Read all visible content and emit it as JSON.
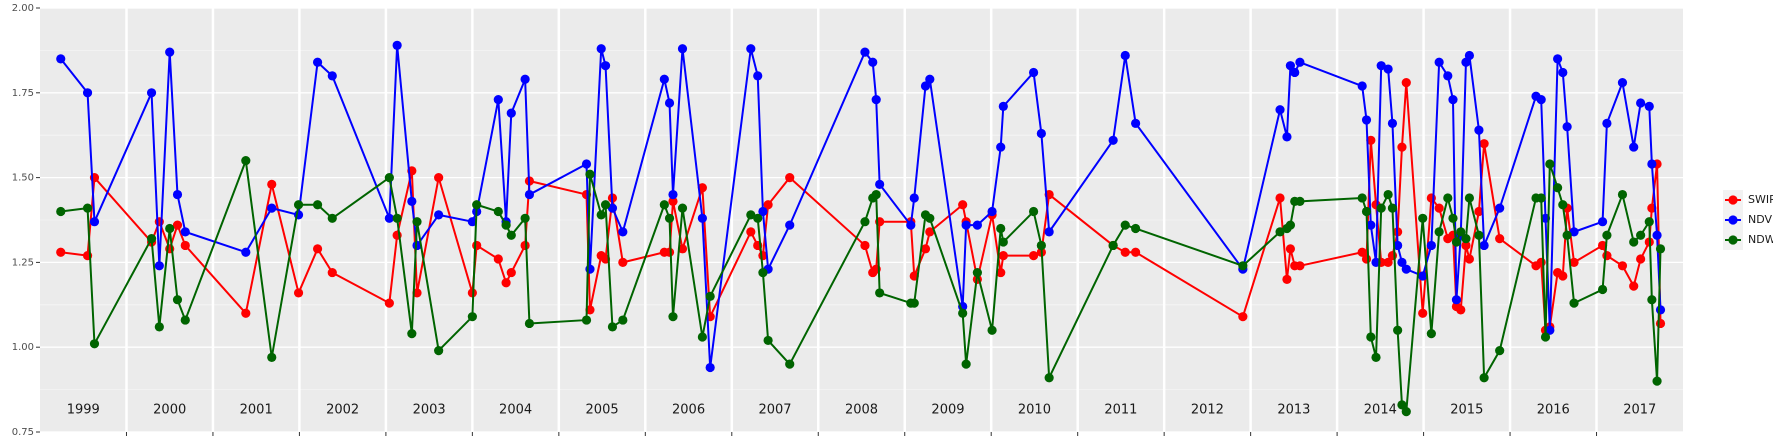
{
  "chart_data": {
    "type": "line",
    "x": [
      1999.24,
      1999.55,
      1999.63,
      2000.29,
      2000.38,
      2000.5,
      2000.59,
      2000.68,
      2001.38,
      2001.68,
      2001.99,
      2002.21,
      2002.38,
      2003.04,
      2003.13,
      2003.3,
      2003.36,
      2003.61,
      2004,
      2004.05,
      2004.3,
      2004.39,
      2004.45,
      2004.61,
      2004.66,
      2005.32,
      2005.36,
      2005.49,
      2005.54,
      2005.62,
      2005.74,
      2006.22,
      2006.28,
      2006.32,
      2006.43,
      2006.66,
      2006.75,
      2007.22,
      2007.3,
      2007.36,
      2007.42,
      2007.67,
      2008.54,
      2008.63,
      2008.67,
      2008.71,
      2009.07,
      2009.11,
      2009.24,
      2009.29,
      2009.67,
      2009.71,
      2009.84,
      2010.01,
      2010.11,
      2010.14,
      2010.49,
      2010.58,
      2010.67,
      2011.41,
      2011.55,
      2011.67,
      2012.91,
      2013.34,
      2013.42,
      2013.46,
      2013.51,
      2013.57,
      2014.29,
      2014.34,
      2014.39,
      2014.45,
      2014.51,
      2014.59,
      2014.64,
      2014.7,
      2014.75,
      2014.8,
      2014.99,
      2015.09,
      2015.18,
      2015.28,
      2015.34,
      2015.38,
      2015.43,
      2015.49,
      2015.53,
      2015.64,
      2015.7,
      2015.88,
      2016.3,
      2016.36,
      2016.41,
      2016.46,
      2016.55,
      2016.61,
      2016.66,
      2016.74,
      2017.07,
      2017.12,
      2017.3,
      2017.43,
      2017.51,
      2017.61,
      2017.64,
      2017.7,
      2017.74
    ],
    "series": [
      {
        "name": "SWIR",
        "color": "#ff0000",
        "values": [
          1.28,
          1.27,
          1.5,
          1.31,
          1.37,
          1.29,
          1.36,
          1.3,
          1.1,
          1.48,
          1.16,
          1.29,
          1.22,
          1.13,
          1.33,
          1.52,
          1.16,
          1.5,
          1.16,
          1.3,
          1.26,
          1.19,
          1.22,
          1.3,
          1.49,
          1.45,
          1.11,
          1.27,
          1.26,
          1.44,
          1.25,
          1.28,
          1.28,
          1.43,
          1.29,
          1.47,
          1.09,
          1.34,
          1.3,
          1.27,
          1.42,
          1.5,
          1.3,
          1.22,
          1.23,
          1.37,
          1.37,
          1.21,
          1.29,
          1.34,
          1.42,
          1.37,
          1.2,
          1.39,
          1.22,
          1.27,
          1.27,
          1.28,
          1.45,
          1.3,
          1.28,
          1.28,
          1.09,
          1.44,
          1.2,
          1.29,
          1.24,
          1.24,
          1.28,
          1.26,
          1.61,
          1.42,
          1.25,
          1.25,
          1.27,
          1.34,
          1.59,
          1.78,
          1.1,
          1.44,
          1.41,
          1.32,
          1.33,
          1.12,
          1.11,
          1.3,
          1.26,
          1.4,
          1.6,
          1.32,
          1.24,
          1.25,
          1.05,
          1.06,
          1.22,
          1.21,
          1.41,
          1.25,
          1.3,
          1.27,
          1.24,
          1.18,
          1.26,
          1.31,
          1.41,
          1.54,
          1.07
        ]
      },
      {
        "name": "NDVI",
        "color": "#0000ff",
        "values": [
          1.85,
          1.75,
          1.37,
          1.75,
          1.24,
          1.87,
          1.45,
          1.34,
          1.28,
          1.41,
          1.39,
          1.84,
          1.8,
          1.38,
          1.89,
          1.43,
          1.3,
          1.39,
          1.37,
          1.4,
          1.73,
          1.37,
          1.69,
          1.79,
          1.45,
          1.54,
          1.23,
          1.88,
          1.83,
          1.41,
          1.34,
          1.79,
          1.72,
          1.45,
          1.88,
          1.38,
          0.94,
          1.88,
          1.8,
          1.4,
          1.23,
          1.36,
          1.87,
          1.84,
          1.73,
          1.48,
          1.36,
          1.44,
          1.77,
          1.79,
          1.12,
          1.36,
          1.36,
          1.4,
          1.59,
          1.71,
          1.81,
          1.63,
          1.34,
          1.61,
          1.86,
          1.66,
          1.23,
          1.7,
          1.62,
          1.83,
          1.81,
          1.84,
          1.77,
          1.67,
          1.36,
          1.25,
          1.83,
          1.82,
          1.66,
          1.3,
          1.25,
          1.23,
          1.21,
          1.3,
          1.84,
          1.8,
          1.73,
          1.14,
          1.33,
          1.84,
          1.86,
          1.64,
          1.3,
          1.41,
          1.74,
          1.73,
          1.38,
          1.05,
          1.85,
          1.81,
          1.65,
          1.34,
          1.37,
          1.66,
          1.78,
          1.59,
          1.72,
          1.71,
          1.54,
          1.33,
          1.11
        ]
      },
      {
        "name": "NDWI",
        "color": "#006400",
        "values": [
          1.4,
          1.41,
          1.01,
          1.32,
          1.06,
          1.35,
          1.14,
          1.08,
          1.55,
          0.97,
          1.42,
          1.42,
          1.38,
          1.5,
          1.38,
          1.04,
          1.37,
          0.99,
          1.09,
          1.42,
          1.4,
          1.36,
          1.33,
          1.38,
          1.07,
          1.08,
          1.51,
          1.39,
          1.42,
          1.06,
          1.08,
          1.42,
          1.38,
          1.09,
          1.41,
          1.03,
          1.15,
          1.39,
          1.38,
          1.22,
          1.02,
          0.95,
          1.37,
          1.44,
          1.45,
          1.16,
          1.13,
          1.13,
          1.39,
          1.38,
          1.1,
          0.95,
          1.22,
          1.05,
          1.35,
          1.31,
          1.4,
          1.3,
          0.91,
          1.3,
          1.36,
          1.35,
          1.24,
          1.34,
          1.35,
          1.36,
          1.43,
          1.43,
          1.44,
          1.4,
          1.03,
          0.97,
          1.41,
          1.45,
          1.41,
          1.05,
          0.83,
          0.81,
          1.38,
          1.04,
          1.34,
          1.44,
          1.38,
          1.31,
          1.34,
          1.32,
          1.44,
          1.33,
          0.91,
          0.99,
          1.44,
          1.44,
          1.03,
          1.54,
          1.47,
          1.42,
          1.33,
          1.13,
          1.17,
          1.33,
          1.45,
          1.31,
          1.33,
          1.37,
          1.14,
          0.9,
          1.29
        ]
      }
    ],
    "xlim": [
      1999,
      2018
    ],
    "xticks": [
      2000,
      2001,
      2002,
      2003,
      2004,
      2005,
      2006,
      2007,
      2008,
      2009,
      2010,
      2011,
      2012,
      2013,
      2014,
      2015,
      2016,
      2017
    ],
    "year_labels": [
      {
        "value": 1999.5,
        "label": "1999"
      },
      {
        "value": 2000.5,
        "label": "2000"
      },
      {
        "value": 2001.5,
        "label": "2001"
      },
      {
        "value": 2002.5,
        "label": "2002"
      },
      {
        "value": 2003.5,
        "label": "2003"
      },
      {
        "value": 2004.5,
        "label": "2004"
      },
      {
        "value": 2005.5,
        "label": "2005"
      },
      {
        "value": 2006.5,
        "label": "2006"
      },
      {
        "value": 2007.5,
        "label": "2007"
      },
      {
        "value": 2008.5,
        "label": "2008"
      },
      {
        "value": 2009.5,
        "label": "2009"
      },
      {
        "value": 2010.5,
        "label": "2010"
      },
      {
        "value": 2011.5,
        "label": "2011"
      },
      {
        "value": 2012.5,
        "label": "2012"
      },
      {
        "value": 2013.5,
        "label": "2013"
      },
      {
        "value": 2014.5,
        "label": "2014"
      },
      {
        "value": 2015.5,
        "label": "2015"
      },
      {
        "value": 2016.5,
        "label": "2016"
      },
      {
        "value": 2017.5,
        "label": "2017"
      }
    ],
    "ylim": [
      0.75,
      2.0
    ],
    "yticks": [
      0.75,
      {
        "value": 1,
        "label": "1.00"
      },
      1.25,
      {
        "value": 1.5,
        "label": "1.50"
      },
      1.75,
      {
        "value": 2,
        "label": "2.00"
      }
    ],
    "grid": true,
    "legend": "right"
  }
}
